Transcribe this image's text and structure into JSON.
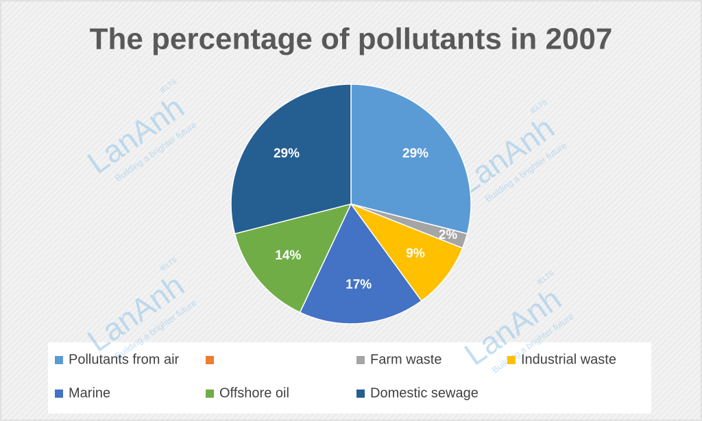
{
  "chart_data": {
    "type": "pie",
    "title": "The percentage of pollutants in 2007",
    "categories": [
      "Pollutants from air",
      null,
      "Farm waste",
      "Industrial waste",
      "Marine",
      "Offshore oil",
      "Domestic sewage"
    ],
    "values": [
      29,
      0,
      2,
      9,
      17,
      14,
      29
    ],
    "value_labels": [
      "29%",
      null,
      "2%",
      "9%",
      "17%",
      "14%",
      "29%"
    ],
    "colors": [
      "#5b9bd5",
      "#ed7d31",
      "#a5a5a5",
      "#ffc000",
      "#4472c4",
      "#70ad47",
      "#255e91"
    ],
    "legend": "bottom"
  },
  "watermark": {
    "text": "LanAnh",
    "badge": "IELTS",
    "tagline": "Building a brighter future"
  }
}
